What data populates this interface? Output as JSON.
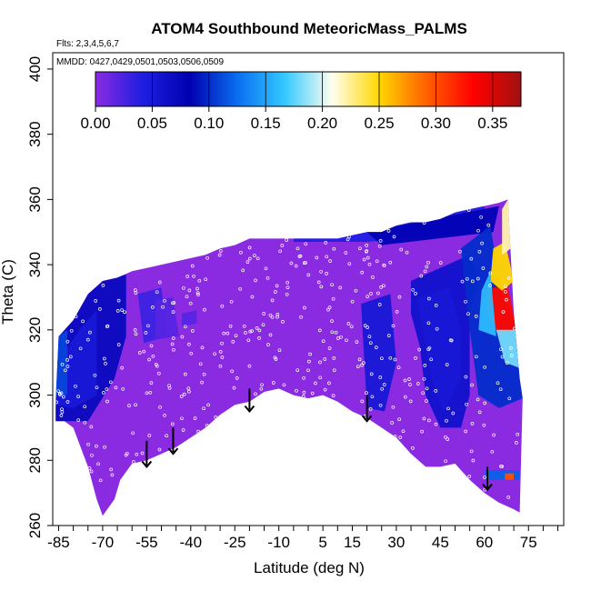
{
  "chart_data": {
    "type": "heatmap",
    "title": "ATOM4 Southbound MeteoricMass_PALMS",
    "subtitle_lines": [
      "Flts: 2,3,4,5,6,7",
      "MMDD: 0427,0429,0501,0503,0506,0509"
    ],
    "xlabel": "Latitude (deg N)",
    "ylabel": "Theta (C)",
    "xlim": [
      -87,
      87
    ],
    "ylim": [
      260,
      405
    ],
    "x_ticks": [
      -85,
      -70,
      -55,
      -40,
      -25,
      -10,
      5,
      15,
      30,
      45,
      60,
      75
    ],
    "x_minor_step": 5,
    "y_ticks": [
      260,
      280,
      300,
      320,
      340,
      360,
      380,
      400
    ],
    "colorbar": {
      "range": [
        0,
        0.375
      ],
      "ticks": [
        "0.00",
        "0.05",
        "0.10",
        "0.15",
        "0.20",
        "0.25",
        "0.30",
        "0.35"
      ],
      "tick_values": [
        0,
        0.05,
        0.1,
        0.15,
        0.2,
        0.25,
        0.3,
        0.35
      ],
      "colors": [
        "#8a2be2",
        "#1e1ee0",
        "#0000b0",
        "#0a6ef0",
        "#33c8ff",
        "#fffff0",
        "#ffd700",
        "#ff6000",
        "#ff0000",
        "#a01010"
      ]
    },
    "domain_boundary": {
      "bottom": [
        [
          -86,
          292
        ],
        [
          -85,
          292
        ],
        [
          -83,
          292
        ],
        [
          -80,
          290
        ],
        [
          -75,
          278
        ],
        [
          -72,
          268
        ],
        [
          -70,
          263
        ],
        [
          -66,
          268
        ],
        [
          -64,
          274
        ],
        [
          -60,
          279
        ],
        [
          -55,
          280
        ],
        [
          -50,
          282
        ],
        [
          -45,
          284
        ],
        [
          -40,
          287
        ],
        [
          -35,
          290
        ],
        [
          -30,
          294
        ],
        [
          -25,
          297
        ],
        [
          -20,
          298
        ],
        [
          -15,
          301
        ],
        [
          -10,
          302
        ],
        [
          -5,
          300
        ],
        [
          0,
          299
        ],
        [
          5,
          300
        ],
        [
          10,
          298
        ],
        [
          15,
          295
        ],
        [
          20,
          293
        ],
        [
          25,
          290
        ],
        [
          30,
          287
        ],
        [
          35,
          282
        ],
        [
          40,
          278
        ],
        [
          45,
          278
        ],
        [
          50,
          279
        ],
        [
          55,
          274
        ],
        [
          60,
          270
        ],
        [
          65,
          267
        ],
        [
          70,
          265
        ],
        [
          72,
          264
        ]
      ],
      "top": [
        [
          -86,
          298
        ],
        [
          -85,
          318
        ],
        [
          -80,
          323
        ],
        [
          -75,
          331
        ],
        [
          -70,
          335
        ],
        [
          -65,
          336
        ],
        [
          -60,
          338
        ],
        [
          -55,
          339
        ],
        [
          -50,
          340
        ],
        [
          -45,
          341
        ],
        [
          -40,
          342
        ],
        [
          -35,
          343
        ],
        [
          -30,
          345
        ],
        [
          -25,
          346
        ],
        [
          -20,
          348
        ],
        [
          -15,
          348
        ],
        [
          -10,
          348
        ],
        [
          -5,
          348
        ],
        [
          0,
          348
        ],
        [
          5,
          348
        ],
        [
          10,
          348
        ],
        [
          15,
          349
        ],
        [
          20,
          350
        ],
        [
          25,
          350
        ],
        [
          30,
          352
        ],
        [
          35,
          353
        ],
        [
          40,
          353
        ],
        [
          45,
          354
        ],
        [
          50,
          356
        ],
        [
          55,
          357
        ],
        [
          60,
          358
        ],
        [
          65,
          359
        ],
        [
          68,
          360
        ],
        [
          70,
          325
        ],
        [
          72,
          305
        ],
        [
          73,
          299
        ]
      ]
    },
    "background_value": 0.0,
    "regions": [
      {
        "name": "southern-upper-band",
        "polygon": [
          [
            -86,
            296
          ],
          [
            -85,
            318
          ],
          [
            -80,
            323
          ],
          [
            -75,
            331
          ],
          [
            -70,
            335
          ],
          [
            -62,
            337
          ],
          [
            -62,
            318
          ],
          [
            -66,
            305
          ],
          [
            -75,
            292
          ],
          [
            -86,
            292
          ]
        ],
        "value": 0.07
      },
      {
        "name": "southern-core",
        "polygon": [
          [
            -85,
            310
          ],
          [
            -78,
            320
          ],
          [
            -72,
            326
          ],
          [
            -72,
            300
          ],
          [
            -80,
            296
          ],
          [
            -86,
            297
          ]
        ],
        "value": 0.05
      },
      {
        "name": "southern-edge",
        "polygon": [
          [
            -86,
            300
          ],
          [
            -85,
            318
          ],
          [
            -82,
            320
          ],
          [
            -82,
            300
          ]
        ],
        "value": 0.11
      },
      {
        "name": "patch-minus55",
        "polygon": [
          [
            -58,
            331
          ],
          [
            -50,
            333
          ],
          [
            -48,
            318
          ],
          [
            -56,
            316
          ]
        ],
        "value": 0.03
      },
      {
        "name": "patch-minus50",
        "polygon": [
          [
            -52,
            329
          ],
          [
            -46,
            330
          ],
          [
            -44,
            318
          ],
          [
            -52,
            317
          ]
        ],
        "value": 0.02
      },
      {
        "name": "patch-minus40",
        "polygon": [
          [
            -43,
            325
          ],
          [
            -38,
            326
          ],
          [
            -38,
            322
          ],
          [
            -43,
            321
          ]
        ],
        "value": 0.02
      },
      {
        "name": "upper-band-tropics",
        "polygon": [
          [
            -5,
            348
          ],
          [
            60,
            358
          ],
          [
            60,
            350
          ],
          [
            20,
            347
          ],
          [
            -5,
            347
          ]
        ],
        "value": 0.04
      },
      {
        "name": "upper-band-north",
        "polygon": [
          [
            20,
            350
          ],
          [
            65,
            358
          ],
          [
            63,
            350
          ],
          [
            25,
            346
          ]
        ],
        "value": 0.08
      },
      {
        "name": "northern-channel",
        "polygon": [
          [
            35,
            335
          ],
          [
            55,
            343
          ],
          [
            58,
            336
          ],
          [
            55,
            325
          ],
          [
            55,
            300
          ],
          [
            52,
            290
          ],
          [
            45,
            290
          ],
          [
            40,
            300
          ],
          [
            38,
            315
          ],
          [
            35,
            325
          ]
        ],
        "value": 0.06
      },
      {
        "name": "northern-deep",
        "polygon": [
          [
            37,
            330
          ],
          [
            48,
            333
          ],
          [
            52,
            320
          ],
          [
            52,
            305
          ],
          [
            46,
            295
          ],
          [
            42,
            305
          ],
          [
            40,
            315
          ]
        ],
        "value": 0.05
      },
      {
        "name": "northern-ramp",
        "polygon": [
          [
            52,
            345
          ],
          [
            62,
            352
          ],
          [
            66,
            330
          ],
          [
            72,
            320
          ],
          [
            73,
            299
          ],
          [
            65,
            296
          ],
          [
            58,
            300
          ],
          [
            55,
            320
          ]
        ],
        "value": 0.1
      },
      {
        "name": "tropical-blue",
        "polygon": [
          [
            18,
            328
          ],
          [
            28,
            331
          ],
          [
            30,
            310
          ],
          [
            26,
            295
          ],
          [
            20,
            296
          ]
        ],
        "value": 0.05
      },
      {
        "name": "hot-spot-core",
        "polygon": [
          [
            61,
            333
          ],
          [
            68,
            333
          ],
          [
            71,
            320
          ],
          [
            65,
            318
          ],
          [
            61,
            325
          ]
        ],
        "value": 0.33
      },
      {
        "name": "hot-spot-shoulder",
        "polygon": [
          [
            63,
            345
          ],
          [
            67,
            347
          ],
          [
            70,
            335
          ],
          [
            66,
            332
          ],
          [
            62,
            335
          ]
        ],
        "value": 0.25
      },
      {
        "name": "hot-spot-plume",
        "polygon": [
          [
            66,
            357
          ],
          [
            68,
            360
          ],
          [
            69,
            345
          ],
          [
            66,
            343
          ]
        ],
        "value": 0.22
      },
      {
        "name": "hot-spot-fringe",
        "polygon": [
          [
            59,
            332
          ],
          [
            62,
            338
          ],
          [
            64,
            318
          ],
          [
            58,
            320
          ]
        ],
        "value": 0.16
      },
      {
        "name": "hot-spot-lower",
        "polygon": [
          [
            64,
            320
          ],
          [
            72,
            320
          ],
          [
            73,
            308
          ],
          [
            67,
            310
          ]
        ],
        "value": 0.18
      },
      {
        "name": "low-strip",
        "polygon": [
          [
            60,
            277
          ],
          [
            72,
            277
          ],
          [
            72,
            274
          ],
          [
            60,
            274
          ]
        ],
        "value": 0.12
      },
      {
        "name": "low-strip-tip",
        "polygon": [
          [
            67,
            276
          ],
          [
            70,
            276
          ],
          [
            70,
            274
          ],
          [
            67,
            274
          ]
        ],
        "value": 0.3
      }
    ],
    "arrows": [
      {
        "lat": -55,
        "top": 286,
        "bottom": 278
      },
      {
        "lat": -46,
        "top": 290,
        "bottom": 282
      },
      {
        "lat": -20,
        "top": 302,
        "bottom": 295
      },
      {
        "lat": 20,
        "top": 300,
        "bottom": 292
      },
      {
        "lat": 61,
        "top": 278,
        "bottom": 271
      }
    ],
    "points_shown": true
  }
}
